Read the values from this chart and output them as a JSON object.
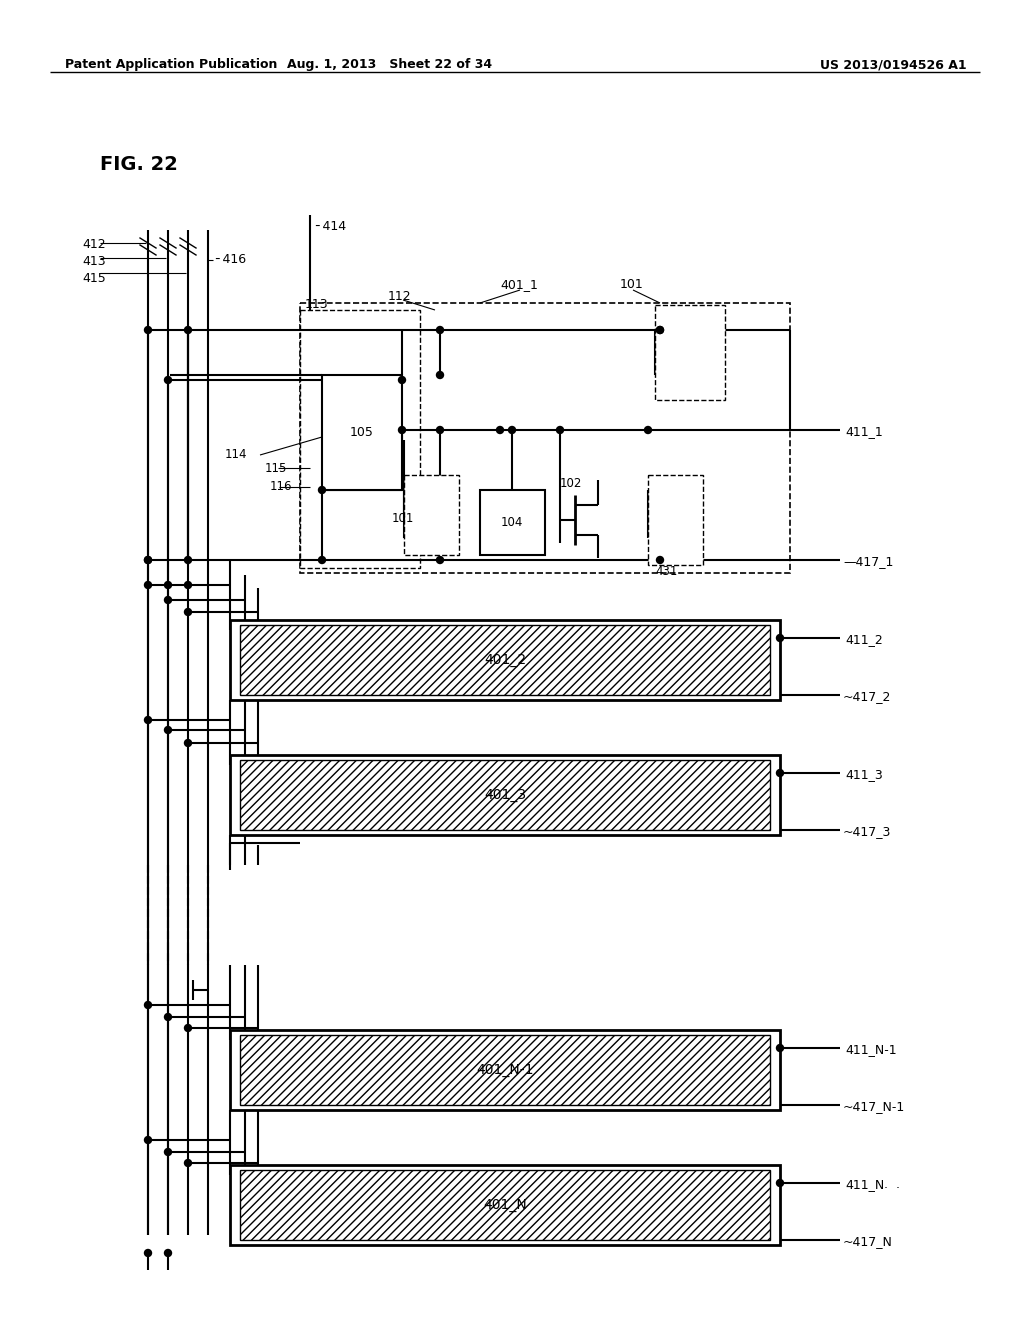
{
  "header_left": "Patent Application Publication",
  "header_mid": "Aug. 1, 2013 Sheet 22 of 34",
  "header_right": "US 2013/0194526 A1",
  "bg_color": "#ffffff"
}
